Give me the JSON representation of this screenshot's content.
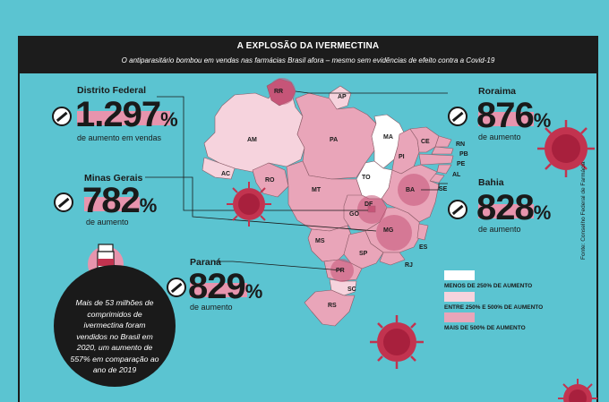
{
  "header": {
    "title": "A EXPLOSÃO DA IVERMECTINA",
    "subtitle": "O antiparasitário bombou em vendas nas farmácias Brasil afora – mesmo sem evidências de efeito contra a Covid-19"
  },
  "stats": {
    "distrito_federal": {
      "name": "Distrito Federal",
      "value": "1.297",
      "pct": "%",
      "sub": "de aumento em vendas"
    },
    "minas_gerais": {
      "name": "Minas Gerais",
      "value": "782",
      "pct": "%",
      "sub": "de aumento"
    },
    "parana": {
      "name": "Paraná",
      "value": "829",
      "pct": "%",
      "sub": "de aumento"
    },
    "roraima": {
      "name": "Roraima",
      "value": "876",
      "pct": "%",
      "sub": "de aumento"
    },
    "bahia": {
      "name": "Bahia",
      "value": "828",
      "pct": "%",
      "sub": "de aumento"
    }
  },
  "legend": [
    {
      "label": "MENOS DE 250% DE AUMENTO",
      "color": "#ffffff"
    },
    {
      "label": "ENTRE 250% E 500% DE AUMENTO",
      "color": "#f6d3dd"
    },
    {
      "label": "MAIS DE 500% DE AUMENTO",
      "color": "#e9a5b9"
    }
  ],
  "states": [
    "RR",
    "AP",
    "AM",
    "PA",
    "MA",
    "CE",
    "RN",
    "PB",
    "PE",
    "AL",
    "PI",
    "AC",
    "RO",
    "TO",
    "BA",
    "SE",
    "MT",
    "GO",
    "DF",
    "MG",
    "ES",
    "MS",
    "SP",
    "RJ",
    "PR",
    "SC",
    "RS"
  ],
  "bubble": "Mais de 53 milhões de comprimidos de ivermectina foram vendidos no Brasil em 2020, um aumento de 557% em comparação ao ano de 2019",
  "source": "Fonte: Conselho Federal de Farmácia",
  "colors": {
    "background": "#5bc4d1",
    "dark": "#1c1c1c",
    "pink": "#e794ad",
    "light_pink": "#f6d3dd",
    "virus": "#c2334f"
  }
}
